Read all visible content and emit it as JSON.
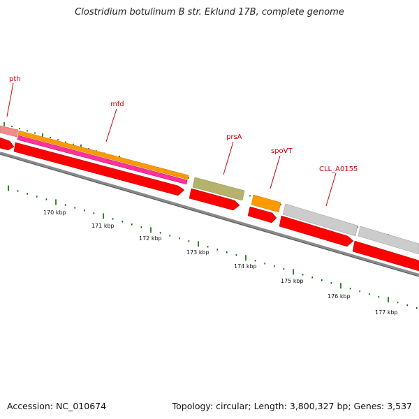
{
  "title": "Clostridium botulinum B str. Eklund 17B, complete genome",
  "footer": {
    "accession": "Accession: NC_010674",
    "topology": "Topology: circular; Length: 3,800,327 bp; Genes: 3,537"
  },
  "colors": {
    "cds": "#ff0000",
    "gene_orange": "#ff9900",
    "gene_pink": "#ff3399",
    "gene_olive": "#b5b36b",
    "gene_grey": "#cccccc",
    "gene_salmon": "#f08c8c",
    "backbone": "#808080",
    "tick": "#006600",
    "label": "#cc0000"
  },
  "genes": [
    {
      "label": "pth"
    },
    {
      "label": "mfd"
    },
    {
      "label": "prsA"
    },
    {
      "label": "spoVT"
    },
    {
      "label": "CLL_A0155"
    }
  ],
  "scale_labels": [
    "170 kbp",
    "171 kbp",
    "172 kbp",
    "173 kbp",
    "174 kbp",
    "175 kbp",
    "176 kbp",
    "177 kbp"
  ]
}
